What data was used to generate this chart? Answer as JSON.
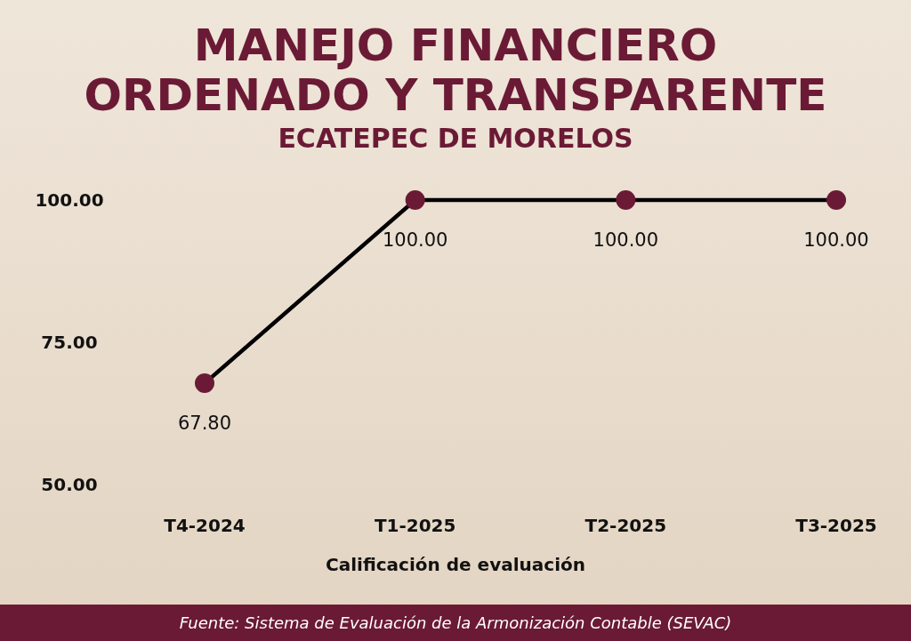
{
  "chart_data": {
    "type": "line",
    "title": "MANEJO FINANCIERO\nORDENADO Y TRANSPARENTE",
    "subtitle": "ECATEPEC DE MORELOS",
    "xlabel": "Calificación de evaluación",
    "categories": [
      "T4-2024",
      "T1-2025",
      "T2-2025",
      "T3-2025"
    ],
    "series": [
      {
        "color": "#000000",
        "values": [
          67.8,
          100,
          100,
          100
        ]
      }
    ],
    "marker": "circle",
    "line_style": "solid",
    "ylim": [
      50,
      100
    ],
    "yticks": [
      {
        "value": 50,
        "label": "50.00"
      },
      {
        "value": 75,
        "label": "75.00"
      },
      {
        "value": 100,
        "label": "100.00"
      }
    ],
    "value_labels": [
      "67.80",
      "100.00",
      "100.00",
      "100.00"
    ],
    "grid": false,
    "annotations": [
      "Fuente: Sistema de Evaluación de la Armonización Contable (SEVAC)"
    ]
  }
}
